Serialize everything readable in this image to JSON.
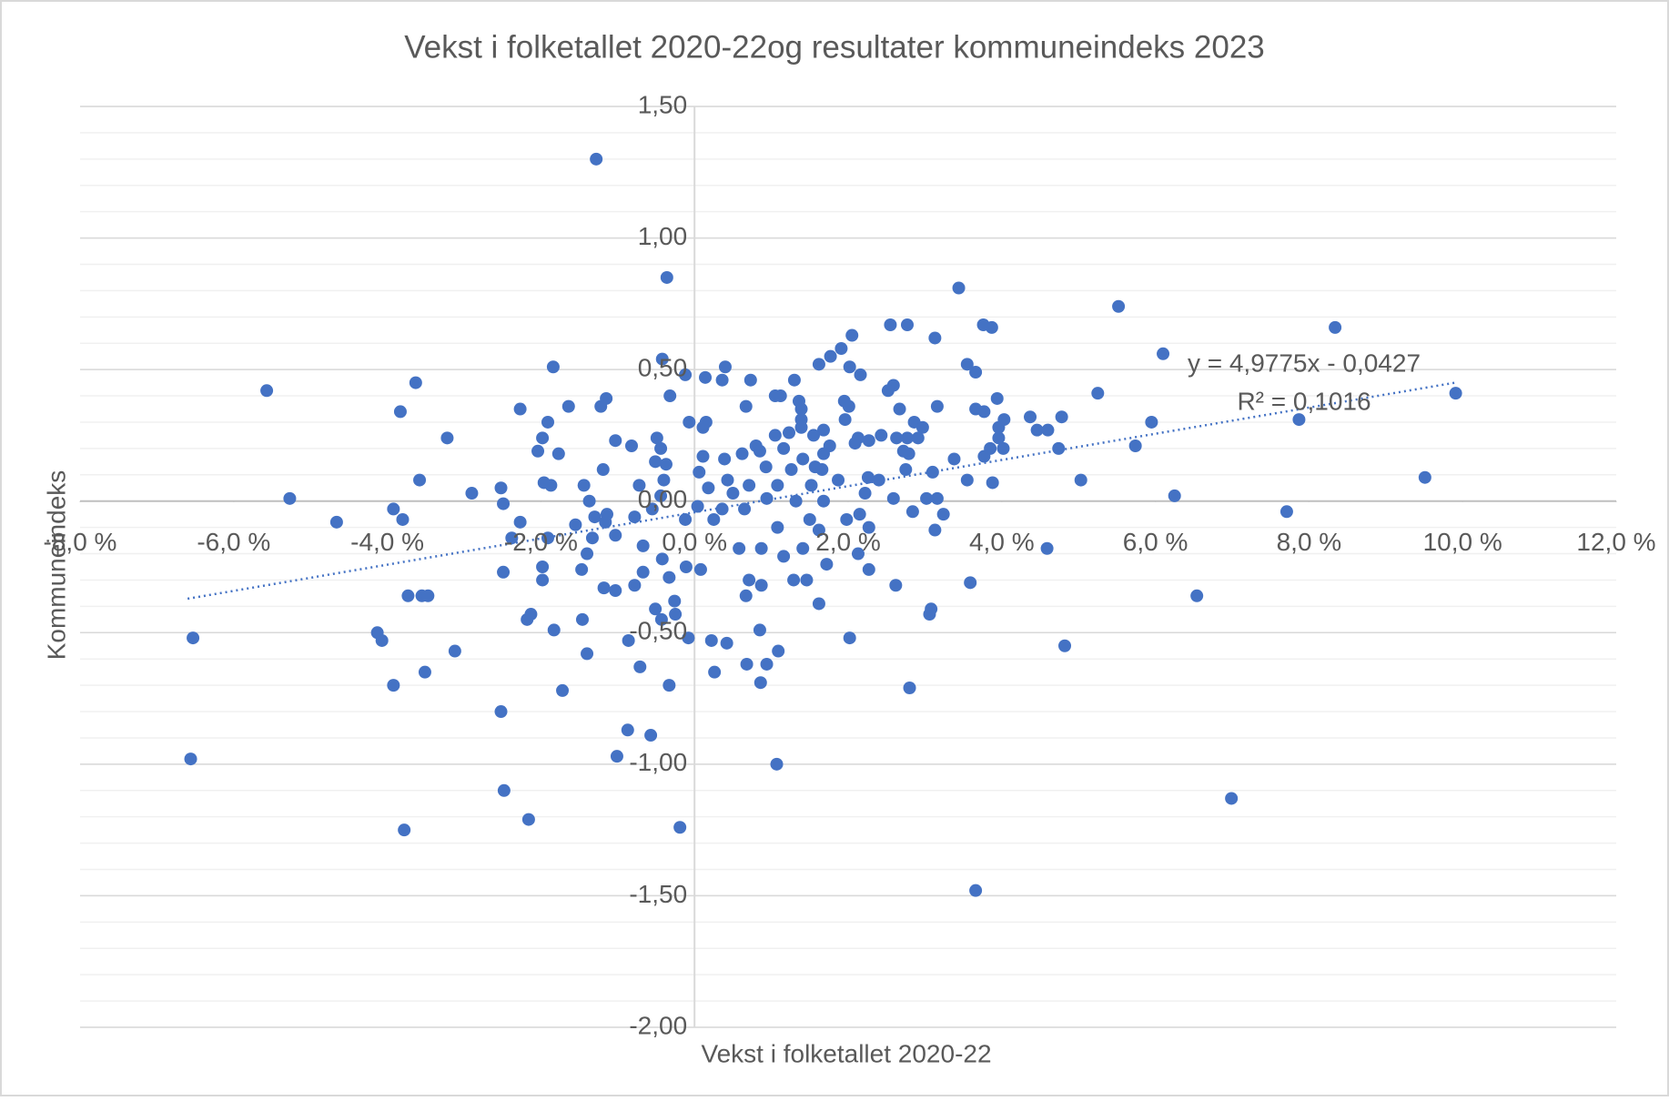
{
  "chart_data": {
    "type": "scatter",
    "title": "Vekst i folketallet 2020-22og resultater kommuneindeks 2023",
    "x_label": "Vekst i folketallet 2020-22",
    "y_label": "Kommuneindeks",
    "color": "#4472c4",
    "xlim": [
      -8,
      12
    ],
    "ylim": [
      -2,
      1.5
    ],
    "xticks": [
      {
        "value": -8,
        "label": "-8,0 %"
      },
      {
        "value": -6,
        "label": "-6,0 %"
      },
      {
        "value": -4,
        "label": "-4,0 %"
      },
      {
        "value": -2,
        "label": "-2,0 %"
      },
      {
        "value": 0,
        "label": "0,0 %"
      },
      {
        "value": 2,
        "label": "2,0 %"
      },
      {
        "value": 4,
        "label": "4,0 %"
      },
      {
        "value": 6,
        "label": "6,0 %"
      },
      {
        "value": 8,
        "label": "8,0 %"
      },
      {
        "value": 10,
        "label": "10,0 %"
      },
      {
        "value": 12,
        "label": "12,0 %"
      }
    ],
    "yticks": [
      {
        "value": 1.5,
        "label": "1,50"
      },
      {
        "value": 1,
        "label": "1,00"
      },
      {
        "value": 0.5,
        "label": "0,50"
      },
      {
        "value": 0,
        "label": "0,00"
      },
      {
        "value": -0.5,
        "label": "-0,50"
      },
      {
        "value": -1,
        "label": "-1,00"
      },
      {
        "value": -1.5,
        "label": "-1,50"
      },
      {
        "value": -2,
        "label": "-2,00"
      }
    ],
    "grid": true,
    "minor_grid_step": 0.1,
    "trendline": {
      "x": [
        -6.6,
        9.9
      ],
      "y": [
        -0.371,
        0.45
      ],
      "equation": "y = 4,9775x - 0,0427",
      "r2": "R² = 0,1016"
    },
    "x": [
      -1.28,
      -0.36,
      3.44,
      5.52,
      8.34,
      2.55,
      2.77,
      3.76,
      3.87,
      2.05,
      3.13,
      6.1,
      1.91,
      1.77,
      3.55,
      1.62,
      -0.42,
      0.4,
      -1.84,
      2.02,
      -0.12,
      3.66,
      2.16,
      0.14,
      0.36,
      0.73,
      1.3,
      -5.57,
      -3.63,
      2.59,
      2.52,
      9.91,
      5.25,
      1.05,
      1.12,
      -1.15,
      -0.32,
      3.94,
      1.95,
      1.36,
      -1.64,
      -1.22,
      0.67,
      2.01,
      3.16,
      -3.83,
      -2.27,
      1.39,
      2.67,
      3.66,
      3.77,
      4.37,
      4.78,
      4.03,
      7.87,
      1.39,
      -0.07,
      0.15,
      1.96,
      2.86,
      5.95,
      -1.91,
      2.97,
      3.96,
      0.11,
      1.39,
      1.68,
      4.46,
      4.6,
      1.23,
      1.05,
      -3.22,
      -1.98,
      -1.03,
      -0.49,
      1.55,
      2.13,
      2.63,
      2.77,
      2.91,
      3.96,
      2.43,
      5.74,
      0.8,
      1.16,
      -0.82,
      0.85,
      1.76,
      2.09,
      2.27,
      -2.04,
      -1.77,
      -0.44,
      4.02,
      4.74,
      3.85,
      2.72,
      2.79,
      0.62,
      1.68,
      0.11,
      0.39,
      3.77,
      3.38,
      -0.51,
      1.41,
      0.93,
      -1.19,
      -0.37,
      1.26,
      1.57,
      1.66,
      0.06,
      2.75,
      3.1,
      -3.58,
      3.55,
      3.88,
      5.03,
      9.51,
      1.87,
      2.26,
      2.4,
      0.43,
      -1.96,
      -1.87,
      -1.44,
      -0.72,
      -0.4,
      0.71,
      1.08,
      1.52,
      0.18,
      -2.52,
      -5.27,
      -2.9,
      6.25,
      -0.44,
      0.5,
      2.22,
      2.59,
      3.02,
      3.16,
      0.94,
      1.32,
      1.68,
      -1.37,
      -2.49,
      -3.92,
      -3.8,
      -4.66,
      -2.27,
      -0.55,
      0.04,
      0.36,
      0.65,
      -1.14,
      -1.3,
      -0.78,
      -1.16,
      7.71,
      2.84,
      3.24,
      2.15,
      1.98,
      1.5,
      1.08,
      0.25,
      -0.12,
      -1.55,
      3.13,
      2.27,
      1.62,
      -2.38,
      -1.91,
      -1.33,
      -1.03,
      -0.67,
      0.58,
      0.87,
      1.41,
      4.59,
      -0.42,
      1.16,
      -1.4,
      2.13,
      1.72,
      -2.49,
      -1.98,
      -1.47,
      -0.67,
      -0.33,
      -0.11,
      0.08,
      0.71,
      0.87,
      1.29,
      1.46,
      2.27,
      2.62,
      3.59,
      -1.98,
      -1.18,
      -1.03,
      -0.78,
      -3.73,
      -3.55,
      -3.47,
      6.54,
      0.67,
      1.62,
      -0.51,
      -0.26,
      3.08,
      -2.13,
      -2.18,
      -0.25,
      -0.43,
      3.06,
      -1.46,
      -1.83,
      0.85,
      -4.13,
      -6.53,
      -4.07,
      2.02,
      -0.08,
      0.22,
      0.42,
      -0.86,
      4.82,
      -3.12,
      -1.4,
      1.09,
      0.68,
      0.94,
      -0.71,
      -3.51,
      0.26,
      -3.92,
      -0.33,
      0.86,
      -1.72,
      2.8,
      -2.52,
      -0.87,
      -0.57,
      -1.01,
      -6.56,
      1.07,
      -2.48,
      6.99,
      -2.16,
      -0.19,
      -3.78,
      3.66
    ],
    "values": [
      1.3,
      0.85,
      0.81,
      0.74,
      0.66,
      0.67,
      0.67,
      0.67,
      0.66,
      0.63,
      0.62,
      0.56,
      0.58,
      0.55,
      0.52,
      0.52,
      0.54,
      0.51,
      0.51,
      0.51,
      0.48,
      0.49,
      0.48,
      0.47,
      0.46,
      0.46,
      0.46,
      0.42,
      0.45,
      0.44,
      0.42,
      0.41,
      0.41,
      0.4,
      0.4,
      0.39,
      0.4,
      0.39,
      0.38,
      0.38,
      0.36,
      0.36,
      0.36,
      0.36,
      0.36,
      0.34,
      0.35,
      0.35,
      0.35,
      0.35,
      0.34,
      0.32,
      0.32,
      0.31,
      0.31,
      0.31,
      0.3,
      0.3,
      0.31,
      0.3,
      0.3,
      0.3,
      0.28,
      0.28,
      0.28,
      0.28,
      0.27,
      0.27,
      0.27,
      0.26,
      0.25,
      0.24,
      0.24,
      0.23,
      0.24,
      0.25,
      0.24,
      0.24,
      0.24,
      0.24,
      0.24,
      0.25,
      0.21,
      0.21,
      0.2,
      0.21,
      0.19,
      0.21,
      0.22,
      0.23,
      0.19,
      0.18,
      0.2,
      0.2,
      0.2,
      0.2,
      0.19,
      0.18,
      0.18,
      0.18,
      0.17,
      0.16,
      0.17,
      0.16,
      0.15,
      0.16,
      0.13,
      0.12,
      0.14,
      0.12,
      0.13,
      0.12,
      0.11,
      0.12,
      0.11,
      0.08,
      0.08,
      0.07,
      0.08,
      0.09,
      0.08,
      0.09,
      0.08,
      0.08,
      0.07,
      0.06,
      0.06,
      0.06,
      0.08,
      0.06,
      0.06,
      0.06,
      0.05,
      0.05,
      0.01,
      0.03,
      0.02,
      0.02,
      0.03,
      0.03,
      0.01,
      0.01,
      0.01,
      0.01,
      0.0,
      0.0,
      0.0,
      -0.01,
      -0.03,
      -0.07,
      -0.08,
      -0.08,
      -0.03,
      -0.02,
      -0.03,
      -0.03,
      -0.05,
      -0.06,
      -0.06,
      -0.08,
      -0.04,
      -0.04,
      -0.05,
      -0.05,
      -0.07,
      -0.07,
      -0.1,
      -0.07,
      -0.07,
      -0.09,
      -0.11,
      -0.1,
      -0.11,
      -0.14,
      -0.14,
      -0.14,
      -0.13,
      -0.17,
      -0.18,
      -0.18,
      -0.18,
      -0.18,
      -0.22,
      -0.21,
      -0.2,
      -0.2,
      -0.24,
      -0.27,
      -0.25,
      -0.26,
      -0.27,
      -0.29,
      -0.25,
      -0.26,
      -0.3,
      -0.32,
      -0.3,
      -0.3,
      -0.26,
      -0.32,
      -0.31,
      -0.3,
      -0.33,
      -0.34,
      -0.32,
      -0.36,
      -0.36,
      -0.36,
      -0.36,
      -0.36,
      -0.39,
      -0.41,
      -0.38,
      -0.41,
      -0.43,
      -0.45,
      -0.43,
      -0.45,
      -0.43,
      -0.45,
      -0.49,
      -0.49,
      -0.5,
      -0.52,
      -0.53,
      -0.52,
      -0.52,
      -0.53,
      -0.54,
      -0.53,
      -0.55,
      -0.57,
      -0.58,
      -0.57,
      -0.62,
      -0.62,
      -0.63,
      -0.65,
      -0.65,
      -0.7,
      -0.7,
      -0.69,
      -0.72,
      -0.71,
      -0.8,
      -0.87,
      -0.89,
      -0.97,
      -0.98,
      -1.0,
      -1.1,
      -1.13,
      -1.21,
      -1.24,
      -1.25,
      -1.48
    ]
  }
}
